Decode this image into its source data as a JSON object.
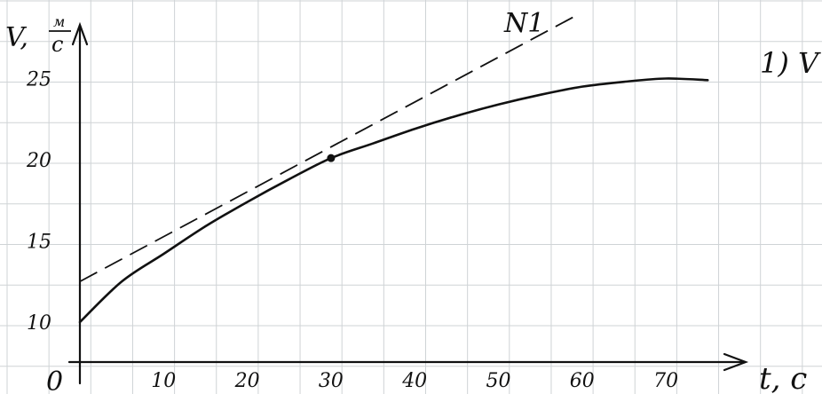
{
  "chart_data": {
    "type": "line",
    "title": "N1",
    "xlabel": "t, c",
    "ylabel": "V, м/с",
    "ylabel_parts": {
      "symbol": "V,",
      "num": "м",
      "den": "с"
    },
    "origin_label": "0",
    "xlim": [
      0,
      76
    ],
    "ylim": [
      8,
      26
    ],
    "x_ticks": [
      10,
      20,
      30,
      40,
      50,
      60,
      70
    ],
    "y_ticks": [
      10,
      15,
      20,
      25
    ],
    "grid": true,
    "series": [
      {
        "style": "solid",
        "x": [
          0,
          5,
          10,
          15,
          20,
          25,
          30,
          35,
          40,
          45,
          50,
          55,
          60,
          65,
          70,
          75
        ],
        "y": [
          10,
          12.5,
          14.2,
          15.9,
          17.4,
          18.8,
          20.1,
          21.0,
          21.9,
          22.7,
          23.4,
          24.0,
          24.5,
          24.8,
          25.0,
          24.9
        ]
      },
      {
        "style": "dashed",
        "x": [
          0,
          59
        ],
        "y": [
          12.5,
          28.8
        ]
      }
    ],
    "annotations": {
      "point": {
        "x": 30,
        "y": 20.1
      },
      "side_note": "1) V"
    }
  }
}
